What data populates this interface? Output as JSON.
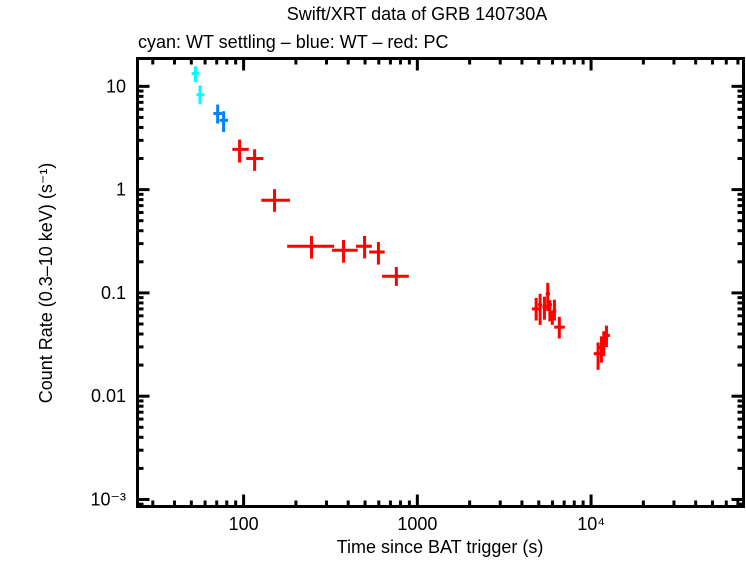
{
  "chart_data": {
    "type": "scatter",
    "title": "Swift/XRT data of GRB 140730A",
    "subtitle": "cyan: WT settling – blue: WT – red: PC",
    "xlabel": "Time since BAT trigger (s)",
    "ylabel": "Count Rate (0.3–10 keV) (s⁻¹)",
    "xscale": "log",
    "yscale": "log",
    "xlim": [
      24.5,
      75400
    ],
    "ylim": [
      0.000855,
      18.6
    ],
    "grid": false,
    "x_ticks": [
      {
        "value": 100,
        "label": "100"
      },
      {
        "value": 1000,
        "label": "1000"
      },
      {
        "value": 10000,
        "label": "10⁴"
      }
    ],
    "y_ticks": [
      {
        "value": 10,
        "label": "10"
      },
      {
        "value": 1,
        "label": "1"
      },
      {
        "value": 0.1,
        "label": "0.1"
      },
      {
        "value": 0.01,
        "label": "0.01"
      },
      {
        "value": 0.001,
        "label": "10⁻³"
      }
    ],
    "point_fields": [
      "time",
      "time_low",
      "time_high",
      "rate",
      "rate_low",
      "rate_high"
    ],
    "series": [
      {
        "name": "WT settling",
        "color": "#00ffff",
        "points": [
          [
            52.8,
            50.2,
            55.6,
            13.3,
            11.0,
            15.6
          ],
          [
            56.1,
            53.5,
            59.4,
            8.3,
            6.7,
            10.2
          ]
        ]
      },
      {
        "name": "WT",
        "color": "#0080ff",
        "points": [
          [
            70.9,
            67.0,
            75.1,
            5.46,
            4.36,
            6.66
          ],
          [
            76.7,
            72.8,
            81.4,
            4.69,
            3.62,
            5.74
          ]
        ]
      },
      {
        "name": "PC",
        "color": "#ff0000",
        "points": [
          [
            94.8,
            86.1,
            107,
            2.45,
            1.83,
            3.05
          ],
          [
            115.7,
            103.6,
            129.8,
            2.0,
            1.52,
            2.46
          ],
          [
            150.7,
            126.4,
            184.8,
            0.79,
            0.61,
            1.01
          ],
          [
            246,
            178,
            332,
            0.283,
            0.215,
            0.356
          ],
          [
            376,
            323,
            454,
            0.259,
            0.196,
            0.325
          ],
          [
            497,
            443,
            547,
            0.283,
            0.216,
            0.356
          ],
          [
            597,
            528,
            649,
            0.249,
            0.188,
            0.311
          ],
          [
            757,
            627,
            893,
            0.145,
            0.117,
            0.178
          ],
          [
            4830,
            4560,
            5060,
            0.07,
            0.054,
            0.0895
          ],
          [
            5090,
            4950,
            5230,
            0.0766,
            0.049,
            0.098
          ],
          [
            5390,
            5250,
            5540,
            0.073,
            0.055,
            0.092
          ],
          [
            5630,
            5480,
            5800,
            0.098,
            0.0666,
            0.125
          ],
          [
            5790,
            5640,
            5950,
            0.077,
            0.053,
            0.085
          ],
          [
            6150,
            5990,
            6310,
            0.0666,
            0.054,
            0.086
          ],
          [
            5980,
            5830,
            6140,
            0.0596,
            0.049,
            0.0668
          ],
          [
            6565,
            6130,
            7060,
            0.0466,
            0.0362,
            0.0586
          ],
          [
            10970,
            10360,
            11470,
            0.0258,
            0.018,
            0.0331
          ],
          [
            11470,
            11100,
            11830,
            0.0296,
            0.0211,
            0.038
          ],
          [
            11830,
            11470,
            12200,
            0.032,
            0.0244,
            0.0425
          ],
          [
            12260,
            11760,
            12830,
            0.0387,
            0.03,
            0.0482
          ]
        ]
      }
    ]
  }
}
